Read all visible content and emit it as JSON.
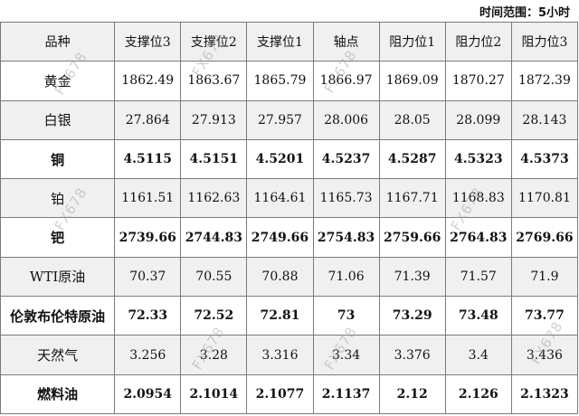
{
  "time_range": "时间范围：5小时",
  "headers": [
    "品种",
    "支撑位3",
    "支撑位2",
    "支撑位1",
    "轴点",
    "阻力位1",
    "阻力位2",
    "阻力位3"
  ],
  "rows": [
    {
      "name": "黄金",
      "values": [
        "1862.49",
        "1863.67",
        "1865.79",
        "1866.97",
        "1869.09",
        "1870.27",
        "1872.39"
      ]
    },
    {
      "name": "白银",
      "values": [
        "27.864",
        "27.913",
        "27.957",
        "28.006",
        "28.05",
        "28.099",
        "28.143"
      ]
    },
    {
      "name": "铜",
      "values": [
        "4.5115",
        "4.5151",
        "4.5201",
        "4.5237",
        "4.5287",
        "4.5323",
        "4.5373"
      ]
    },
    {
      "name": "铂",
      "values": [
        "1161.51",
        "1162.63",
        "1164.61",
        "1165.73",
        "1167.71",
        "1168.83",
        "1170.81"
      ]
    },
    {
      "name": "钯",
      "values": [
        "2739.66",
        "2744.83",
        "2749.66",
        "2754.83",
        "2759.66",
        "2764.83",
        "2769.66"
      ]
    },
    {
      "name": "WTI原油",
      "values": [
        "70.37",
        "70.55",
        "70.88",
        "71.06",
        "71.39",
        "71.57",
        "71.9"
      ]
    },
    {
      "name": "伦敦布伦特原油",
      "values": [
        "72.33",
        "72.52",
        "72.81",
        "73",
        "73.29",
        "73.48",
        "73.77"
      ]
    },
    {
      "name": "天然气",
      "values": [
        "3.256",
        "3.28",
        "3.316",
        "3.34",
        "3.376",
        "3.4",
        "3.436"
      ]
    },
    {
      "name": "燃料油",
      "values": [
        "2.0954",
        "2.1014",
        "2.1077",
        "2.1137",
        "2.12",
        "2.126",
        "2.1323"
      ]
    }
  ],
  "watermark": "FX678"
}
